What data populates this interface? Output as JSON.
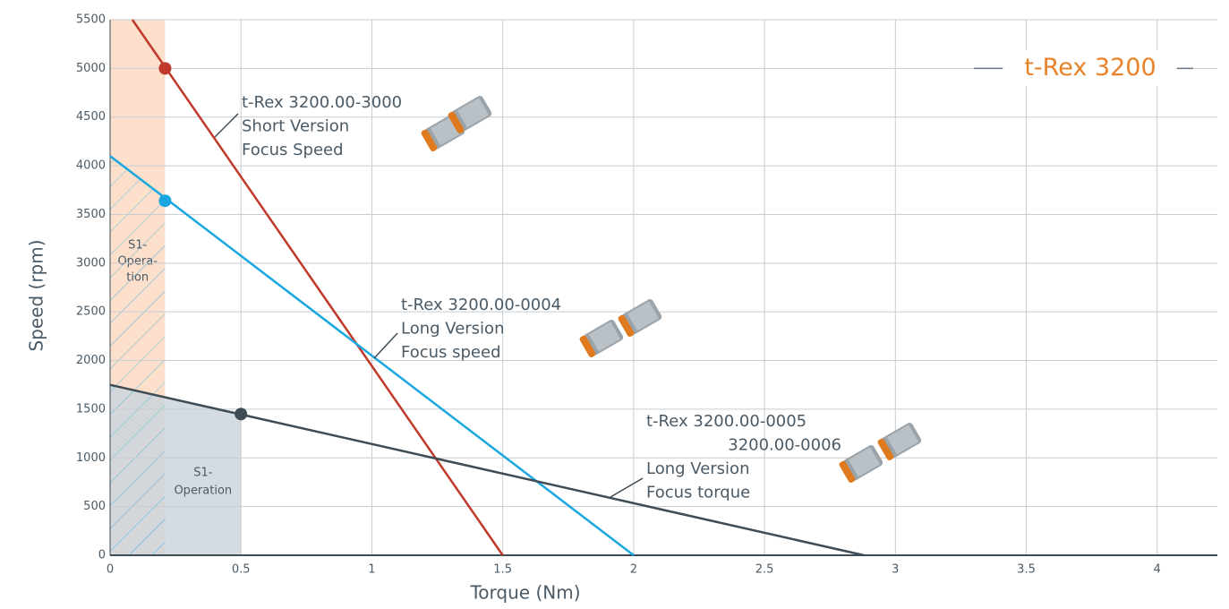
{
  "chart_data": {
    "type": "line",
    "title": "t-Rex 3200",
    "x_label": "Torque (Nm)",
    "y_label": "Speed (rpm)",
    "xlim": [
      0,
      4.23
    ],
    "ylim": [
      0,
      5500
    ],
    "xticks": [
      0,
      0.5,
      1,
      1.5,
      2,
      2.5,
      3,
      3.5,
      4
    ],
    "yticks": [
      0,
      500,
      1000,
      1500,
      2000,
      2500,
      3000,
      3500,
      4000,
      4500,
      5000,
      5500
    ],
    "grid": true,
    "series": [
      {
        "label_lines": [
          "t-Rex 3200.00-3000",
          "Short Version",
          "Focus Speed"
        ],
        "color": "#c0392b",
        "x": [
          0.085,
          1.5
        ],
        "values": [
          5500,
          0
        ],
        "marker": {
          "x": 0.21,
          "y": 5000
        }
      },
      {
        "label_lines": [
          "t-Rex 3200.00-0004",
          "Long Version",
          "Focus speed"
        ],
        "color": "#1aa7e0",
        "x": [
          0,
          2.0
        ],
        "values": [
          4100,
          0
        ],
        "marker": {
          "x": 0.21,
          "y": 3640
        }
      },
      {
        "label_lines": [
          "t-Rex 3200.00-0005",
          "3200.00-0006",
          "Long Version",
          "Focus torque"
        ],
        "color": "#3e4c55",
        "x": [
          0,
          2.88
        ],
        "values": [
          1750,
          0
        ],
        "marker": {
          "x": 0.5,
          "y": 1450
        }
      }
    ],
    "regions": [
      {
        "x": [
          0,
          0.21
        ],
        "label_lines": [
          "S1-",
          "Opera-",
          "tion"
        ],
        "color": "#fde0cc"
      },
      {
        "x": [
          0,
          0.5
        ],
        "label_lines": [
          "S1-",
          "Operation"
        ],
        "color": "#cdd5dc"
      }
    ]
  }
}
